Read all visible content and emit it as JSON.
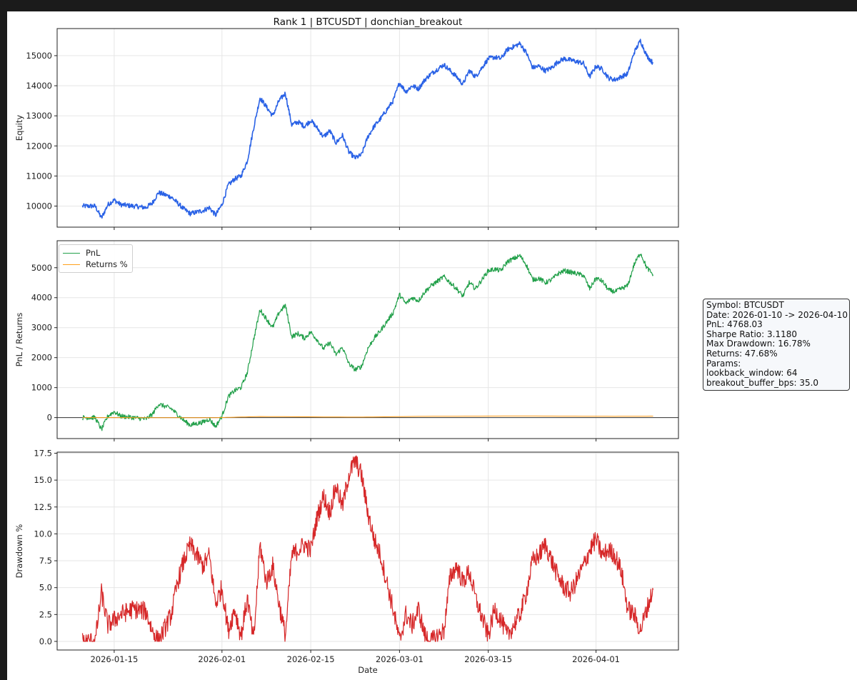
{
  "figure": {
    "title": "Rank 1 | BTCUSDT | donchian_breakout",
    "xlabel": "Date"
  },
  "info_box": {
    "lines": [
      "Symbol: BTCUSDT",
      "Date: 2026-01-10 -> 2026-04-10",
      "PnL: 4768.03",
      "Sharpe Ratio: 3.1180",
      "Max Drawdown: 16.78%",
      "Returns: 47.68%",
      "Params:",
      "lookback_window: 64",
      "breakout_buffer_bps: 35.0"
    ]
  },
  "colors": {
    "equity": "#2a62e6",
    "pnl": "#22a04a",
    "returns": "#ff9f1a",
    "drawdown": "#d62728"
  },
  "chart_data": [
    {
      "type": "line",
      "panel": "equity",
      "title": "Rank 1 | BTCUSDT | donchian_breakout",
      "xlabel": "",
      "ylabel": "Equity",
      "xlim": [
        "2026-01-06",
        "2026-04-14"
      ],
      "ylim": [
        9300,
        15900
      ],
      "yticks": [
        10000,
        11000,
        12000,
        13000,
        14000,
        15000
      ],
      "grid": true,
      "series": [
        {
          "color": "#2a62e6",
          "x": [
            "2026-01-10",
            "2026-01-12",
            "2026-01-13",
            "2026-01-14",
            "2026-01-15",
            "2026-01-16",
            "2026-01-18",
            "2026-01-20",
            "2026-01-21",
            "2026-01-22",
            "2026-01-24",
            "2026-01-25",
            "2026-01-26",
            "2026-01-27",
            "2026-01-29",
            "2026-01-30",
            "2026-01-31",
            "2026-02-01",
            "2026-02-02",
            "2026-02-03",
            "2026-02-04",
            "2026-02-05",
            "2026-02-06",
            "2026-02-07",
            "2026-02-08",
            "2026-02-09",
            "2026-02-10",
            "2026-02-11",
            "2026-02-12",
            "2026-02-13",
            "2026-02-14",
            "2026-02-15",
            "2026-02-16",
            "2026-02-17",
            "2026-02-18",
            "2026-02-19",
            "2026-02-20",
            "2026-02-21",
            "2026-02-22",
            "2026-02-23",
            "2026-02-24",
            "2026-02-25",
            "2026-02-26",
            "2026-02-27",
            "2026-02-28",
            "2026-03-01",
            "2026-03-02",
            "2026-03-03",
            "2026-03-04",
            "2026-03-05",
            "2026-03-06",
            "2026-03-08",
            "2026-03-09",
            "2026-03-10",
            "2026-03-11",
            "2026-03-12",
            "2026-03-13",
            "2026-03-15",
            "2026-03-16",
            "2026-03-17",
            "2026-03-18",
            "2026-03-19",
            "2026-03-20",
            "2026-03-21",
            "2026-03-22",
            "2026-03-23",
            "2026-03-24",
            "2026-03-25",
            "2026-03-26",
            "2026-03-27",
            "2026-03-28",
            "2026-03-30",
            "2026-03-31",
            "2026-04-01",
            "2026-04-02",
            "2026-04-03",
            "2026-04-04",
            "2026-04-05",
            "2026-04-06",
            "2026-04-07",
            "2026-04-08",
            "2026-04-09",
            "2026-04-10"
          ],
          "y": [
            10000,
            10000,
            9600,
            10050,
            10200,
            10050,
            10000,
            9950,
            10100,
            10450,
            10300,
            10100,
            9900,
            9750,
            9850,
            9950,
            9700,
            10050,
            10700,
            10900,
            11000,
            11500,
            12600,
            13600,
            13300,
            13000,
            13500,
            13750,
            12700,
            12800,
            12650,
            12850,
            12600,
            12300,
            12500,
            12100,
            12350,
            11800,
            11600,
            11700,
            12300,
            12650,
            12900,
            13200,
            13500,
            14100,
            13800,
            14000,
            13900,
            14200,
            14400,
            14700,
            14500,
            14300,
            14050,
            14500,
            14300,
            14900,
            14950,
            14900,
            15200,
            15300,
            15400,
            15100,
            14600,
            14650,
            14500,
            14600,
            14800,
            14900,
            14850,
            14750,
            14300,
            14650,
            14550,
            14250,
            14200,
            14300,
            14400,
            15100,
            15500,
            15000,
            14750
          ]
        }
      ]
    },
    {
      "type": "line",
      "panel": "pnl",
      "xlabel": "",
      "ylabel": "PnL / Returns",
      "xlim": [
        "2026-01-06",
        "2026-04-14"
      ],
      "ylim": [
        -700,
        5900
      ],
      "yticks": [
        0,
        1000,
        2000,
        3000,
        4000,
        5000
      ],
      "grid": true,
      "zero_line": true,
      "legend": "top-left",
      "series": [
        {
          "name": "PnL",
          "color": "#22a04a",
          "x": [
            "2026-01-10",
            "2026-01-12",
            "2026-01-13",
            "2026-01-14",
            "2026-01-15",
            "2026-01-16",
            "2026-01-18",
            "2026-01-20",
            "2026-01-21",
            "2026-01-22",
            "2026-01-24",
            "2026-01-25",
            "2026-01-26",
            "2026-01-27",
            "2026-01-29",
            "2026-01-30",
            "2026-01-31",
            "2026-02-01",
            "2026-02-02",
            "2026-02-03",
            "2026-02-04",
            "2026-02-05",
            "2026-02-06",
            "2026-02-07",
            "2026-02-08",
            "2026-02-09",
            "2026-02-10",
            "2026-02-11",
            "2026-02-12",
            "2026-02-13",
            "2026-02-14",
            "2026-02-15",
            "2026-02-16",
            "2026-02-17",
            "2026-02-18",
            "2026-02-19",
            "2026-02-20",
            "2026-02-21",
            "2026-02-22",
            "2026-02-23",
            "2026-02-24",
            "2026-02-25",
            "2026-02-26",
            "2026-02-27",
            "2026-02-28",
            "2026-03-01",
            "2026-03-02",
            "2026-03-03",
            "2026-03-04",
            "2026-03-05",
            "2026-03-06",
            "2026-03-08",
            "2026-03-09",
            "2026-03-10",
            "2026-03-11",
            "2026-03-12",
            "2026-03-13",
            "2026-03-15",
            "2026-03-16",
            "2026-03-17",
            "2026-03-18",
            "2026-03-19",
            "2026-03-20",
            "2026-03-21",
            "2026-03-22",
            "2026-03-23",
            "2026-03-24",
            "2026-03-25",
            "2026-03-26",
            "2026-03-27",
            "2026-03-28",
            "2026-03-30",
            "2026-03-31",
            "2026-04-01",
            "2026-04-02",
            "2026-04-03",
            "2026-04-04",
            "2026-04-05",
            "2026-04-06",
            "2026-04-07",
            "2026-04-08",
            "2026-04-09",
            "2026-04-10"
          ],
          "y": [
            0,
            0,
            -400,
            50,
            200,
            50,
            0,
            -50,
            100,
            450,
            300,
            100,
            -100,
            -250,
            -150,
            -50,
            -300,
            50,
            700,
            900,
            1000,
            1500,
            2600,
            3600,
            3300,
            3000,
            3500,
            3750,
            2700,
            2800,
            2650,
            2850,
            2600,
            2300,
            2500,
            2100,
            2350,
            1800,
            1600,
            1700,
            2300,
            2650,
            2900,
            3200,
            3500,
            4100,
            3800,
            4000,
            3900,
            4200,
            4400,
            4700,
            4500,
            4300,
            4050,
            4500,
            4300,
            4900,
            4950,
            4900,
            5200,
            5300,
            5400,
            5100,
            4600,
            4650,
            4500,
            4600,
            4800,
            4900,
            4850,
            4750,
            4300,
            4650,
            4550,
            4250,
            4200,
            4300,
            4400,
            5100,
            5500,
            5000,
            4768
          ]
        },
        {
          "name": "Returns %",
          "color": "#ff9f1a",
          "x": [
            "2026-01-10",
            "2026-01-20",
            "2026-01-31",
            "2026-02-07",
            "2026-02-22",
            "2026-03-05",
            "2026-03-20",
            "2026-04-04",
            "2026-04-10"
          ],
          "y": [
            0,
            -1,
            -3,
            36,
            16,
            42,
            54,
            42,
            47.68
          ]
        }
      ]
    },
    {
      "type": "line",
      "panel": "drawdown",
      "xlabel": "Date",
      "ylabel": "Drawdown %",
      "xlim": [
        "2026-01-06",
        "2026-04-14"
      ],
      "ylim": [
        -0.8,
        17.6
      ],
      "yticks": [
        "0.0",
        "2.5",
        "5.0",
        "7.5",
        "10.0",
        "12.5",
        "15.0",
        "17.5"
      ],
      "xticks": [
        "2026-01-15",
        "2026-02-01",
        "2026-02-15",
        "2026-03-01",
        "2026-03-15",
        "2026-04-01"
      ],
      "grid": true,
      "series": [
        {
          "color": "#d62728",
          "x": [
            "2026-01-10",
            "2026-01-12",
            "2026-01-13",
            "2026-01-14",
            "2026-01-15",
            "2026-01-16",
            "2026-01-18",
            "2026-01-20",
            "2026-01-21",
            "2026-01-22",
            "2026-01-24",
            "2026-01-25",
            "2026-01-26",
            "2026-01-27",
            "2026-01-29",
            "2026-01-30",
            "2026-01-31",
            "2026-02-01",
            "2026-02-02",
            "2026-02-03",
            "2026-02-04",
            "2026-02-05",
            "2026-02-06",
            "2026-02-07",
            "2026-02-08",
            "2026-02-09",
            "2026-02-10",
            "2026-02-11",
            "2026-02-12",
            "2026-02-13",
            "2026-02-14",
            "2026-02-15",
            "2026-02-16",
            "2026-02-17",
            "2026-02-18",
            "2026-02-19",
            "2026-02-20",
            "2026-02-21",
            "2026-02-22",
            "2026-02-23",
            "2026-02-24",
            "2026-02-25",
            "2026-02-26",
            "2026-02-27",
            "2026-02-28",
            "2026-03-01",
            "2026-03-02",
            "2026-03-03",
            "2026-03-04",
            "2026-03-05",
            "2026-03-06",
            "2026-03-08",
            "2026-03-09",
            "2026-03-10",
            "2026-03-11",
            "2026-03-12",
            "2026-03-13",
            "2026-03-15",
            "2026-03-16",
            "2026-03-17",
            "2026-03-18",
            "2026-03-19",
            "2026-03-20",
            "2026-03-21",
            "2026-03-22",
            "2026-03-23",
            "2026-03-24",
            "2026-03-25",
            "2026-03-26",
            "2026-03-27",
            "2026-03-28",
            "2026-03-30",
            "2026-03-31",
            "2026-04-01",
            "2026-04-02",
            "2026-04-03",
            "2026-04-04",
            "2026-04-05",
            "2026-04-06",
            "2026-04-07",
            "2026-04-08",
            "2026-04-09",
            "2026-04-10"
          ],
          "y": [
            0,
            0,
            4.5,
            1.5,
            2.0,
            2.5,
            3.0,
            2.8,
            1.0,
            0.0,
            2.5,
            5.5,
            7.5,
            9.0,
            7.0,
            8.0,
            3.5,
            5.0,
            1.0,
            3.0,
            0.5,
            4.0,
            0.0,
            9.0,
            5.5,
            7.0,
            3.5,
            0.5,
            8.0,
            8.5,
            9.0,
            8.5,
            11.5,
            13.5,
            12.0,
            14.5,
            12.5,
            15.5,
            16.8,
            15.5,
            12.0,
            9.5,
            8.0,
            5.5,
            3.0,
            0.0,
            2.5,
            1.5,
            3.0,
            0.5,
            0.0,
            1.0,
            6.0,
            7.0,
            5.5,
            6.5,
            4.0,
            0.5,
            3.0,
            2.0,
            0.5,
            1.5,
            2.5,
            4.5,
            7.5,
            8.0,
            9.0,
            7.5,
            6.0,
            5.0,
            4.5,
            7.0,
            8.5,
            9.5,
            8.0,
            8.5,
            8.0,
            6.5,
            3.0,
            2.5,
            1.0,
            3.0,
            4.8
          ]
        }
      ]
    }
  ]
}
